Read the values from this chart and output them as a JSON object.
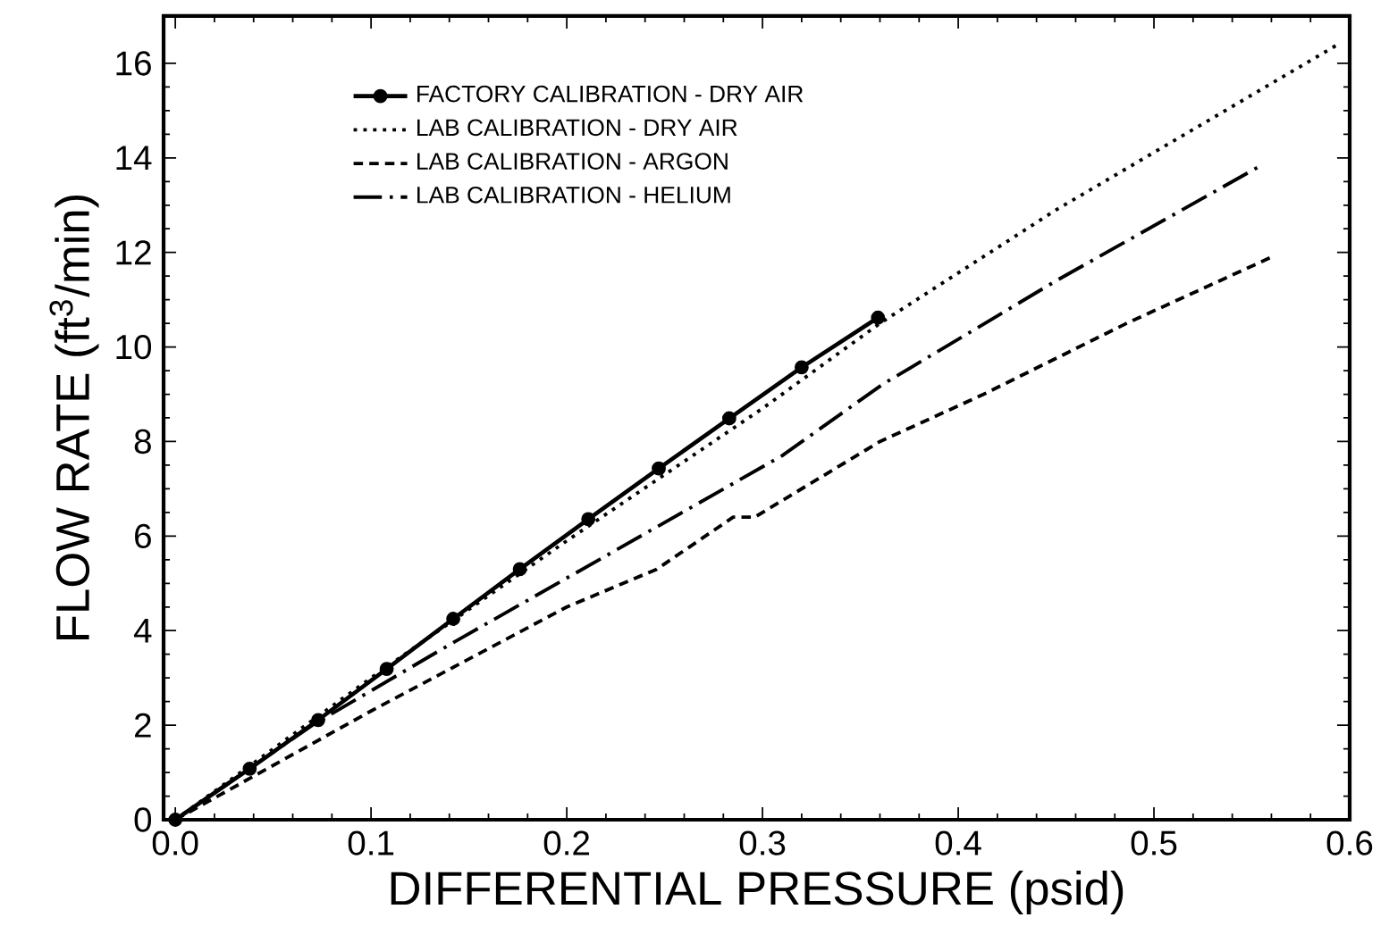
{
  "chart_data": {
    "type": "line",
    "xlabel": "DIFFERENTIAL PRESSURE  (psid)",
    "ylabel": "FLOW RATE  (ft$^{3}$/min)",
    "xlim": [
      -0.006,
      0.6
    ],
    "ylim": [
      0,
      17
    ],
    "xticks": [
      {
        "value": 0,
        "label": "0.0"
      },
      0.1,
      0.2,
      0.3,
      0.4,
      0.5,
      0.6
    ],
    "yticks": [
      0,
      2,
      4,
      6,
      8,
      10,
      12,
      14,
      16
    ],
    "legend": "top left",
    "series": [
      {
        "name": "FACTORY CALIBRATION - DRY AIR",
        "color": "#000000",
        "marker": "circle",
        "line_style": "solid",
        "x": [
          0,
          0.038,
          0.073,
          0.108,
          0.142,
          0.176,
          0.211,
          0.247,
          0.283,
          0.32,
          0.359
        ],
        "values": [
          0,
          1.08,
          2.11,
          3.19,
          4.25,
          5.3,
          6.36,
          7.43,
          8.49,
          9.57,
          10.62
        ]
      },
      {
        "name": "LAB CALIBRATION - DRY AIR",
        "color": "#000000",
        "marker": "none",
        "line_style": "dotted",
        "x": [
          0,
          0.1,
          0.2,
          0.3,
          0.36,
          0.45,
          0.594
        ],
        "values": [
          0,
          3.0,
          5.9,
          8.7,
          10.5,
          12.9,
          16.4
        ]
      },
      {
        "name": "LAB CALIBRATION - ARGON",
        "color": "#000000",
        "marker": "none",
        "line_style": "dashed",
        "x": [
          0,
          0.1,
          0.2,
          0.246,
          0.285,
          0.296,
          0.36,
          0.413,
          0.486,
          0.56
        ],
        "values": [
          0,
          2.3,
          4.5,
          5.3,
          6.4,
          6.4,
          8.0,
          9.0,
          10.5,
          11.9
        ]
      },
      {
        "name": "LAB CALIBRATION - HELIUM",
        "color": "#000000",
        "marker": "none",
        "line_style": "dashdot",
        "x": [
          0,
          0.07,
          0.14,
          0.31,
          0.361,
          0.45,
          0.553
        ],
        "values": [
          0,
          2.0,
          3.7,
          7.7,
          9.2,
          11.4,
          13.8
        ]
      }
    ]
  }
}
